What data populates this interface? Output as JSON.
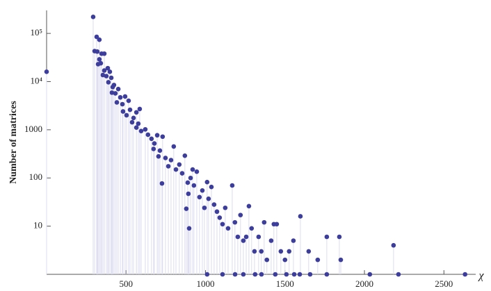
{
  "chart_data": {
    "type": "scatter",
    "xlabel": "χ",
    "ylabel": "Number of matrices",
    "color": "#3d3d9c",
    "stem_color": "#dcdcf0",
    "log_y": true,
    "xlim": [
      0,
      2700
    ],
    "ylim": [
      1,
      300000
    ],
    "xticks": [
      500,
      1000,
      1500,
      2000,
      2500
    ],
    "yticks": [
      10,
      100,
      1000,
      {
        "value": 10000,
        "label": "10⁴"
      },
      {
        "value": 100000,
        "label": "10⁵"
      }
    ],
    "x": [
      0,
      293,
      315,
      332,
      302,
      319,
      346,
      363,
      332,
      324,
      341,
      363,
      385,
      354,
      376,
      398,
      407,
      389,
      416,
      424,
      411,
      433,
      451,
      464,
      442,
      477,
      494,
      516,
      481,
      503,
      525,
      547,
      565,
      586,
      538,
      565,
      595,
      577,
      621,
      638,
      660,
      678,
      696,
      673,
      713,
      730,
      704,
      748,
      766,
      726,
      783,
      800,
      814,
      835,
      853,
      870,
      888,
      906,
      919,
      892,
      927,
      945,
      962,
      980,
      993,
      1010,
      879,
      897,
      1019,
      1037,
      1054,
      1072,
      1089,
      1107,
      1124,
      1142,
      1168,
      1185,
      1203,
      1220,
      1238,
      1256,
      1273,
      1290,
      1308,
      1334,
      1351,
      1369,
      1386,
      1413,
      1430,
      1448,
      1474,
      1500,
      1526,
      1553,
      1597,
      1649,
      1706,
      1763,
      1842,
      1851,
      2183,
      1010,
      1107,
      1186,
      1238,
      1312,
      1352,
      1439,
      1509,
      1558,
      1593,
      1658,
      1763,
      2034,
      2214,
      2633
    ],
    "values": [
      16000,
      220000,
      85000,
      74000,
      43000,
      42000,
      38000,
      38000,
      29000,
      23000,
      24000,
      17000,
      19000,
      13700,
      13000,
      16000,
      12000,
      9700,
      7700,
      8500,
      5900,
      5700,
      7000,
      4700,
      3700,
      3400,
      4900,
      4000,
      2400,
      2000,
      2600,
      1760,
      2300,
      2700,
      1430,
      1110,
      940,
      1340,
      1020,
      790,
      650,
      520,
      770,
      400,
      370,
      720,
      280,
      260,
      175,
      77,
      235,
      450,
      150,
      190,
      125,
      290,
      80,
      100,
      150,
      47,
      70,
      135,
      40,
      55,
      24,
      82,
      23,
      9,
      37,
      65,
      28,
      20,
      15,
      11,
      24,
      9,
      70,
      12,
      6,
      17,
      5,
      6,
      26,
      9,
      3,
      6,
      3,
      12,
      2,
      5,
      11,
      11,
      3,
      2,
      3,
      5,
      16,
      3,
      2,
      6,
      6,
      2,
      4,
      1,
      1,
      1,
      1,
      1,
      1,
      1,
      1,
      1,
      1,
      1,
      1,
      1,
      1,
      1
    ]
  }
}
